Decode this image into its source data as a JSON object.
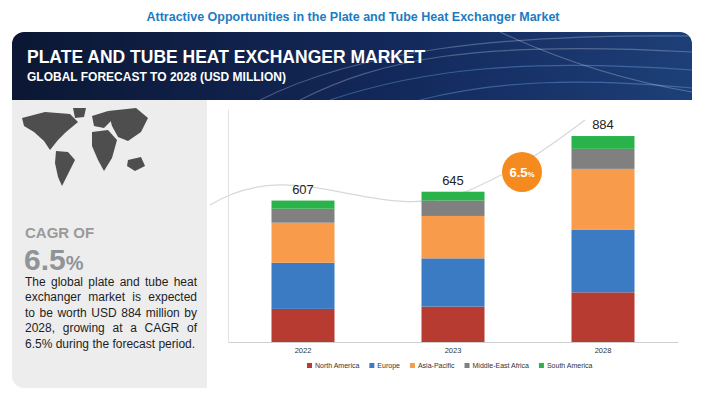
{
  "page_title": "Attractive Opportunities in the Plate and Tube Heat Exchanger Market",
  "panel": {
    "cagr_label": "CAGR OF",
    "cagr_value": "6.5%",
    "text": "The global plate and tube heat exchanger  market is expected to be worth USD 884  million by 2028, growing at a CAGR of 6.5%  during the forecast period."
  },
  "chart_data": {
    "type": "bar",
    "title": "PLATE AND TUBE HEAT EXCHANGER MARKET",
    "subtitle": "GLOBAL FORECAST TO 2028 (USD MILLION)",
    "categories": [
      "2022",
      "2023",
      "2028"
    ],
    "series": [
      {
        "name": "North America",
        "color": "#b83b32",
        "values": [
          142,
          152,
          213
        ]
      },
      {
        "name": "Europe",
        "color": "#3b7bc4",
        "values": [
          198,
          207,
          268
        ]
      },
      {
        "name": "Asia-Pacific",
        "color": "#f89c4b",
        "values": [
          172,
          182,
          262
        ]
      },
      {
        "name": "Middle-East Africa",
        "color": "#808080",
        "values": [
          60,
          66,
          86
        ]
      },
      {
        "name": "South America",
        "color": "#2bb34b",
        "values": [
          35,
          38,
          55
        ]
      }
    ],
    "totals": [
      607,
      645,
      884
    ],
    "annotation": "6.5%",
    "ylim": [
      0,
      1000
    ],
    "stacked": true,
    "legend": "bottom",
    "tick_labels": "x"
  }
}
